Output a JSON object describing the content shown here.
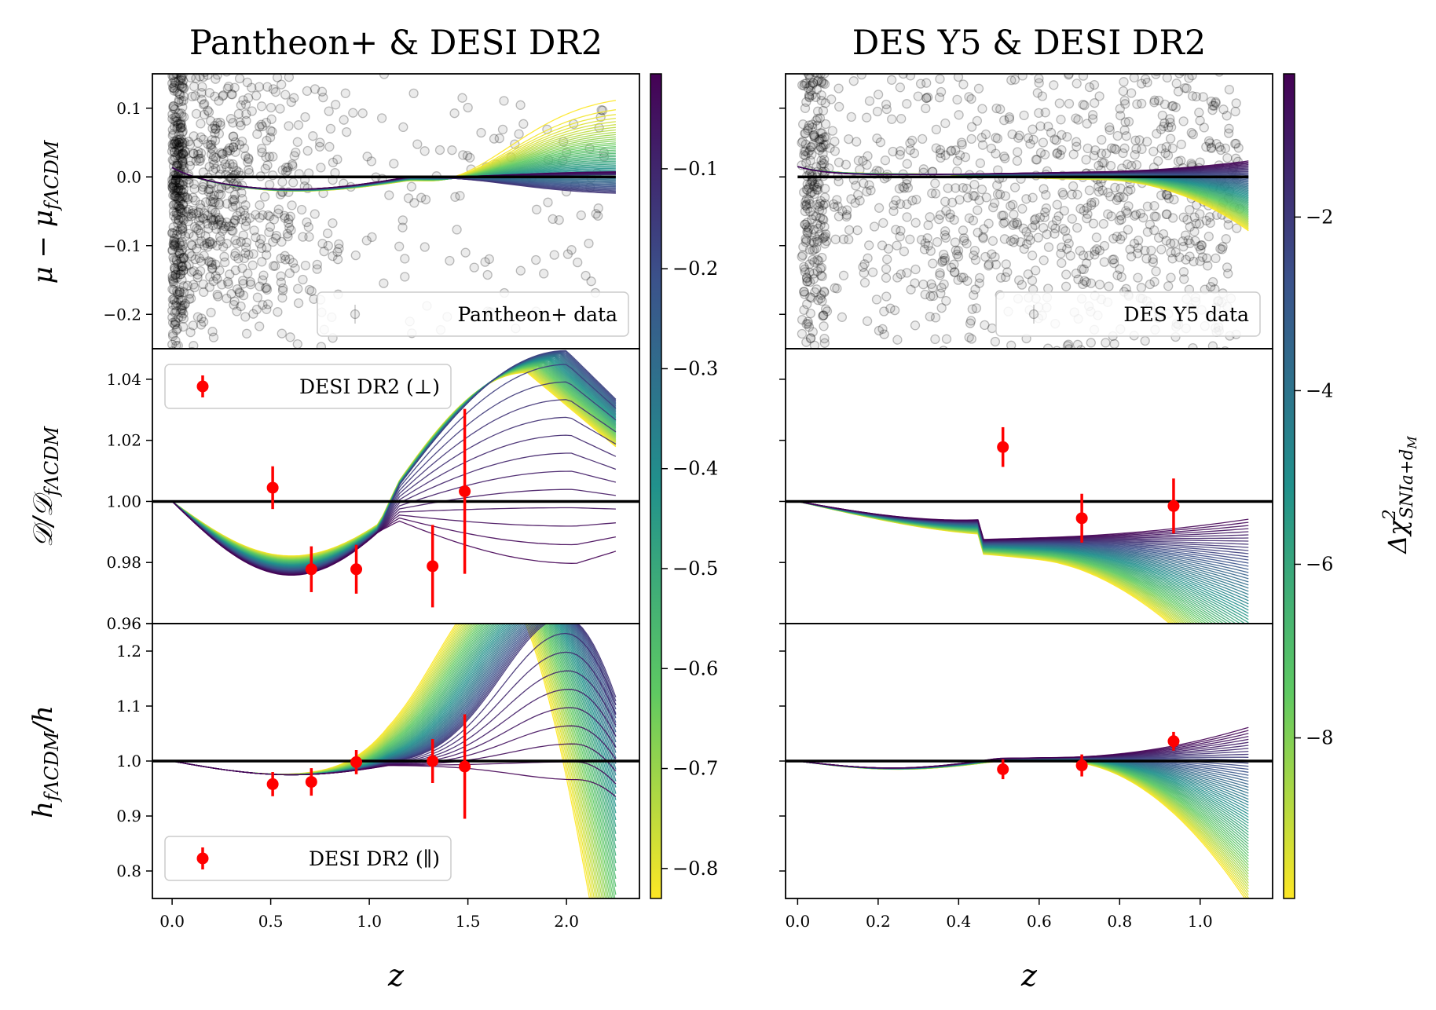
{
  "chart_data": [
    {
      "type": "scatter",
      "panel": "top-left",
      "title": "Pantheon+ & DESI DR2",
      "xlabel": "",
      "ylabel": "μ − μ_fΛCDM",
      "xlim": [
        -0.1,
        2.37
      ],
      "ylim": [
        -0.25,
        0.15
      ],
      "yticks": [
        "0.1",
        "0.0",
        "−0.1",
        "−0.2"
      ],
      "ytick_values": [
        0.1,
        0.0,
        -0.1,
        -0.2
      ],
      "legend": [
        "Pantheon+ data"
      ],
      "legend_loc": "lower right",
      "model_curves": {
        "z_max": 2.25,
        "envelope_max": [
          [
            0.3,
            0.0
          ],
          [
            1.0,
            -0.015
          ],
          [
            1.3,
            -0.01
          ],
          [
            1.5,
            0.0
          ],
          [
            1.8,
            0.05
          ],
          [
            2.1,
            0.1
          ],
          [
            2.25,
            0.105
          ]
        ],
        "envelope_min": [
          [
            0.3,
            -0.01
          ],
          [
            1.0,
            -0.035
          ],
          [
            1.3,
            -0.025
          ],
          [
            1.8,
            -0.02
          ],
          [
            2.25,
            -0.03
          ]
        ]
      }
    },
    {
      "type": "line",
      "panel": "middle-left",
      "ylabel": "D/D_fΛCDM",
      "xlim": [
        -0.1,
        2.37
      ],
      "ylim": [
        0.96,
        1.05
      ],
      "yticks": [
        "1.04",
        "1.02",
        "1.00",
        "0.98",
        "0.96"
      ],
      "ytick_values": [
        1.04,
        1.02,
        1.0,
        0.98,
        0.96
      ],
      "legend": [
        "DESI DR2 (⊥)"
      ],
      "legend_loc": "upper left",
      "series": [
        {
          "name": "DESI DR2 (⊥)",
          "x": [
            0.51,
            0.706,
            0.934,
            1.321,
            1.484
          ],
          "y": [
            1.0045,
            0.9778,
            0.9778,
            0.9788,
            1.0033
          ],
          "yerr": [
            0.007,
            0.0075,
            0.008,
            0.0135,
            0.027
          ]
        }
      ],
      "reference_line": 1.0
    },
    {
      "type": "line",
      "panel": "bottom-left",
      "ylabel": "h_fΛCDM/h",
      "xlabel": "z",
      "xlim": [
        -0.1,
        2.37
      ],
      "ylim": [
        0.75,
        1.25
      ],
      "xticks": [
        "0.0",
        "0.5",
        "1.0",
        "1.5",
        "2.0"
      ],
      "xtick_values": [
        0.0,
        0.5,
        1.0,
        1.5,
        2.0
      ],
      "yticks": [
        "1.2",
        "1.1",
        "1.0",
        "0.9",
        "0.8"
      ],
      "ytick_values": [
        1.2,
        1.1,
        1.0,
        0.9,
        0.8
      ],
      "legend": [
        "DESI DR2 (∥)"
      ],
      "legend_loc": "lower left",
      "series": [
        {
          "name": "DESI DR2 (∥)",
          "x": [
            0.51,
            0.706,
            0.934,
            1.321,
            1.484
          ],
          "y": [
            0.958,
            0.962,
            0.998,
            1.0,
            0.99
          ],
          "yerr": [
            0.022,
            0.025,
            0.022,
            0.04,
            0.095
          ]
        }
      ],
      "reference_line": 1.0
    },
    {
      "type": "scatter",
      "panel": "top-right",
      "title": "DES Y5 & DESI DR2",
      "xlim": [
        -0.03,
        1.18
      ],
      "ylim": [
        -0.25,
        0.15
      ],
      "legend": [
        "DES Y5 data"
      ],
      "legend_loc": "lower right",
      "model_curves": {
        "z_max": 1.12
      }
    },
    {
      "type": "line",
      "panel": "middle-right",
      "xlim": [
        -0.03,
        1.18
      ],
      "ylim": [
        0.96,
        1.05
      ],
      "series": [
        {
          "name": "DESI DR2 (⊥)",
          "x": [
            0.51,
            0.706,
            0.934
          ],
          "y": [
            1.0178,
            0.9945,
            0.9985
          ],
          "yerr": [
            0.0065,
            0.008,
            0.009
          ]
        }
      ],
      "reference_line": 1.0
    },
    {
      "type": "line",
      "panel": "bottom-right",
      "xlabel": "z",
      "xlim": [
        -0.03,
        1.18
      ],
      "ylim": [
        0.75,
        1.25
      ],
      "xticks": [
        "0.0",
        "0.2",
        "0.4",
        "0.6",
        "0.8",
        "1.0"
      ],
      "xtick_values": [
        0.0,
        0.2,
        0.4,
        0.6,
        0.8,
        1.0
      ],
      "series": [
        {
          "name": "DESI DR2 (∥)",
          "x": [
            0.51,
            0.706,
            0.934
          ],
          "y": [
            0.985,
            0.992,
            1.036
          ],
          "yerr": [
            0.018,
            0.02,
            0.017
          ]
        }
      ],
      "reference_line": 1.0
    }
  ],
  "colorbars": [
    {
      "side": "left-panels",
      "colormap": "viridis",
      "range": [
        -0.83,
        -0.005
      ],
      "ticks": [
        "−0.1",
        "−0.2",
        "−0.3",
        "−0.4",
        "−0.5",
        "−0.6",
        "−0.7",
        "−0.8"
      ],
      "tick_values": [
        -0.1,
        -0.2,
        -0.3,
        -0.4,
        -0.5,
        -0.6,
        -0.7,
        -0.8
      ],
      "label": ""
    },
    {
      "side": "right-panels",
      "colormap": "viridis",
      "range": [
        -9.85,
        -0.35
      ],
      "ticks": [
        "−2",
        "−4",
        "−6",
        "−8"
      ],
      "tick_values": [
        -2,
        -4,
        -6,
        -8
      ],
      "label": "Δχ²_SNIa+d_M"
    }
  ],
  "colors": {
    "data_points": "#000000",
    "desi_points": "#ff0000",
    "reference_line": "#000000",
    "viridis": [
      "#440154",
      "#3b528b",
      "#21918c",
      "#5ec962",
      "#fde725"
    ]
  }
}
